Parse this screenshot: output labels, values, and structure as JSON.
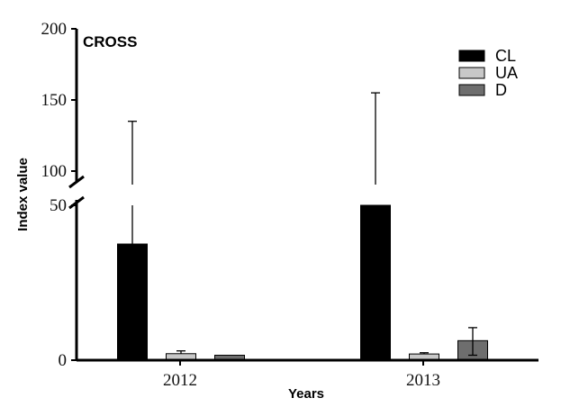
{
  "chart_data": {
    "type": "bar",
    "title": "CROSS",
    "xlabel": "Years",
    "ylabel": "Index value",
    "categories": [
      "2012",
      "2013"
    ],
    "y_axis_break": {
      "lower_range": [
        0,
        50
      ],
      "upper_range": [
        87,
        200
      ]
    },
    "y_ticks": [
      0,
      50,
      100,
      150,
      200
    ],
    "series": [
      {
        "name": "CL",
        "color": "#000000",
        "values": [
          37.5,
          50
        ],
        "error_upper": [
          135,
          155
        ]
      },
      {
        "name": "UA",
        "color": "#c8c8c8",
        "values": [
          2.1,
          2.0
        ],
        "error_upper": [
          3.0,
          2.4
        ]
      },
      {
        "name": "D",
        "color": "#6e6e6e",
        "values": [
          1.6,
          6.3
        ],
        "error_upper": [
          1.6,
          10.5
        ],
        "error_lower": [
          1.6,
          1.6
        ]
      }
    ],
    "legend_position": "top-right"
  }
}
